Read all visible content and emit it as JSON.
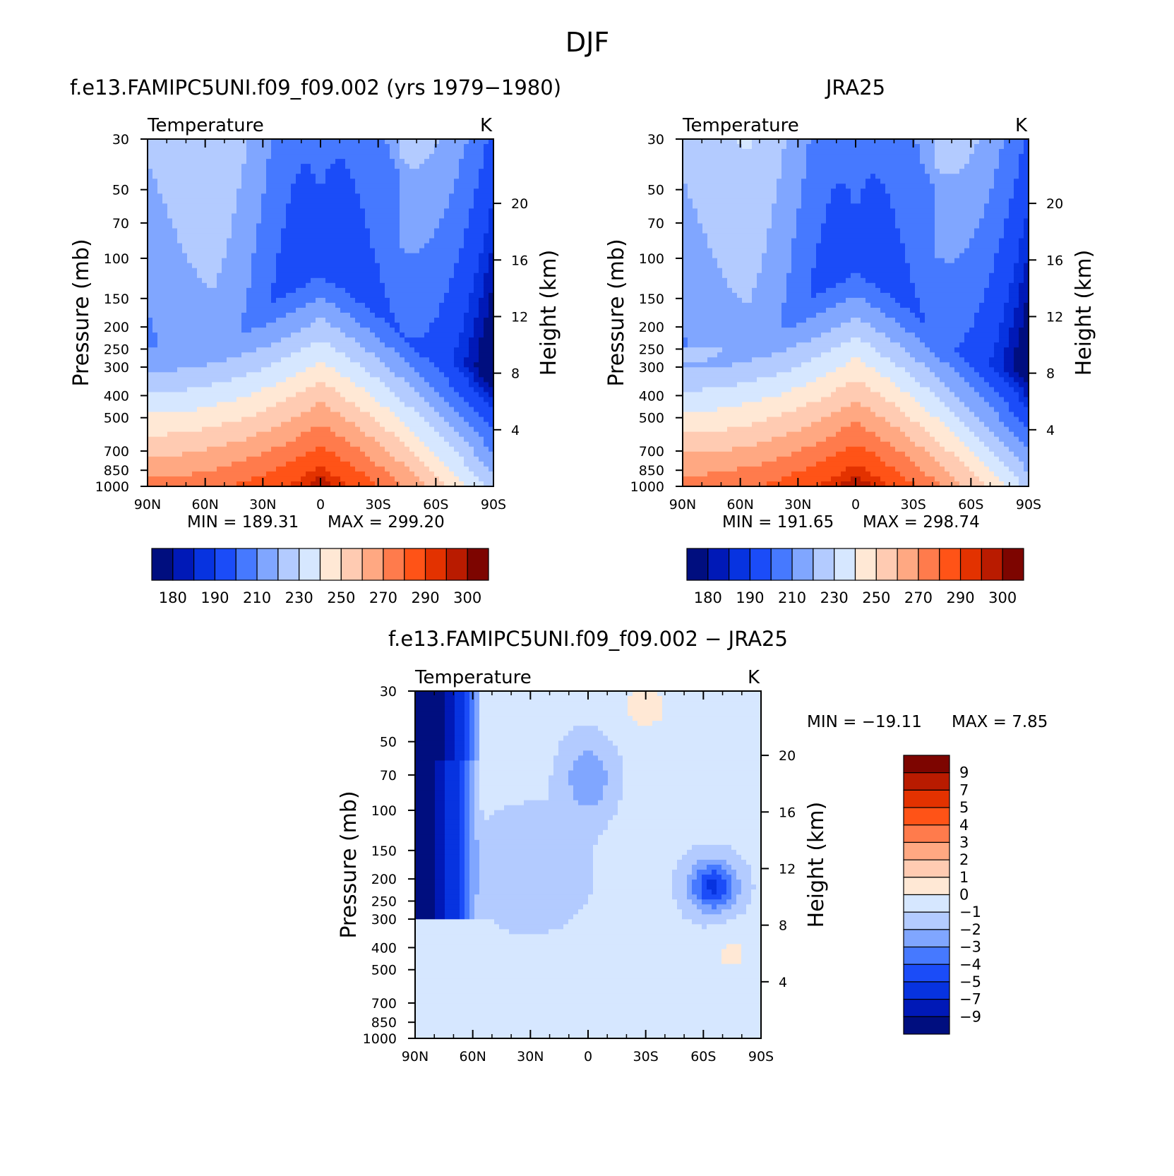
{
  "page_title": "DJF",
  "chart_data": [
    {
      "type": "heatmap",
      "title": "f.e13.FAMIPC5UNI.f09_f09.002 (yrs 1979−1980)",
      "subtitle_left": "Temperature",
      "subtitle_right": "K",
      "xlabel": "",
      "ylabel": "Pressure (mb)",
      "ylabel_right": "Height (km)",
      "x_ticks": [
        "90N",
        "60N",
        "30N",
        "0",
        "30S",
        "60S",
        "90S"
      ],
      "y_ticks": [
        30,
        50,
        70,
        100,
        150,
        200,
        250,
        300,
        400,
        500,
        700,
        850,
        1000
      ],
      "y_ticks_right": [
        20,
        16,
        12,
        8,
        4
      ],
      "ylim": [
        1000,
        30
      ],
      "y_scale": "log",
      "min_label": "MIN = 189.31",
      "max_label": "MAX = 299.20",
      "colorbar": {
        "orientation": "horizontal",
        "colors": [
          "#000e7f",
          "#0019b7",
          "#0733e0",
          "#1b4cf8",
          "#4679ff",
          "#80a6ff",
          "#b3cbff",
          "#d6e7ff",
          "#ffe8d5",
          "#ffcbb2",
          "#ffa882",
          "#ff7b4c",
          "#ff5317",
          "#e33200",
          "#b91b00",
          "#7d0500"
        ],
        "labels": [
          "180",
          "190",
          "210",
          "230",
          "250",
          "270",
          "290",
          "300"
        ]
      }
    },
    {
      "type": "heatmap",
      "title": "JRA25",
      "subtitle_left": "Temperature",
      "subtitle_right": "K",
      "xlabel": "",
      "ylabel": "Pressure (mb)",
      "ylabel_right": "Height (km)",
      "x_ticks": [
        "90N",
        "60N",
        "30N",
        "0",
        "30S",
        "60S",
        "90S"
      ],
      "y_ticks": [
        30,
        50,
        70,
        100,
        150,
        200,
        250,
        300,
        400,
        500,
        700,
        850,
        1000
      ],
      "y_ticks_right": [
        20,
        16,
        12,
        8,
        4
      ],
      "ylim": [
        1000,
        30
      ],
      "y_scale": "log",
      "min_label": "MIN = 191.65",
      "max_label": "MAX = 298.74",
      "colorbar": {
        "orientation": "horizontal",
        "colors": [
          "#000e7f",
          "#0019b7",
          "#0733e0",
          "#1b4cf8",
          "#4679ff",
          "#80a6ff",
          "#b3cbff",
          "#d6e7ff",
          "#ffe8d5",
          "#ffcbb2",
          "#ffa882",
          "#ff7b4c",
          "#ff5317",
          "#e33200",
          "#b91b00",
          "#7d0500"
        ],
        "labels": [
          "180",
          "190",
          "210",
          "230",
          "250",
          "270",
          "290",
          "300"
        ]
      }
    },
    {
      "type": "heatmap",
      "title": "f.e13.FAMIPC5UNI.f09_f09.002 − JRA25",
      "subtitle_left": "Temperature",
      "subtitle_right": "K",
      "xlabel": "",
      "ylabel": "Pressure (mb)",
      "ylabel_right": "Height (km)",
      "x_ticks": [
        "90N",
        "60N",
        "30N",
        "0",
        "30S",
        "60S",
        "90S"
      ],
      "y_ticks": [
        30,
        50,
        70,
        100,
        150,
        200,
        250,
        300,
        400,
        500,
        700,
        850,
        1000
      ],
      "y_ticks_right": [
        20,
        16,
        12,
        8,
        4
      ],
      "ylim": [
        1000,
        30
      ],
      "y_scale": "log",
      "min_label": "MIN = −19.11",
      "max_label": "MAX =    7.85",
      "colorbar": {
        "orientation": "vertical",
        "colors": [
          "#7d0500",
          "#b91b00",
          "#e33200",
          "#ff5317",
          "#ff7b4c",
          "#ffa882",
          "#ffcbb2",
          "#ffe8d5",
          "#d6e7ff",
          "#b3cbff",
          "#80a6ff",
          "#4679ff",
          "#1b4cf8",
          "#0733e0",
          "#0019b7",
          "#000e7f"
        ],
        "labels": [
          "9",
          "7",
          "5",
          "4",
          "3",
          "2",
          "1",
          "0",
          "−1",
          "−2",
          "−3",
          "−4",
          "−5",
          "−7",
          "−9"
        ]
      }
    }
  ]
}
